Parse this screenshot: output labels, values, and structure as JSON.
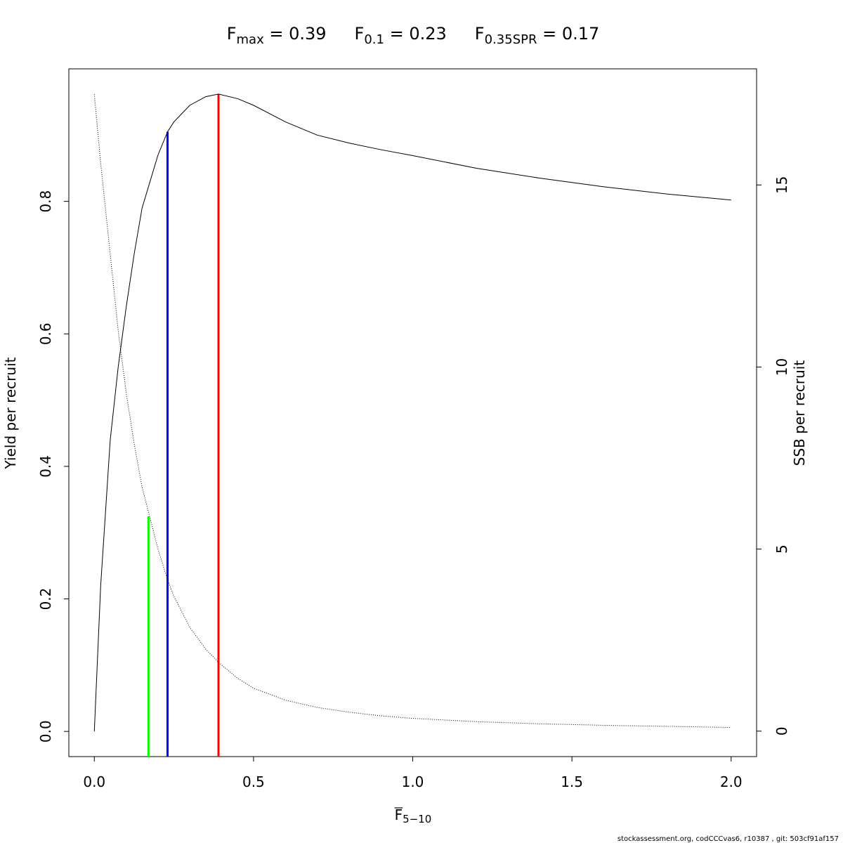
{
  "chart_data": {
    "type": "line",
    "title_parts": [
      {
        "text": "F",
        "sub": "max",
        "tail": " = 0.39"
      },
      {
        "text": "F",
        "sub": "0.1",
        "tail": " = 0.23"
      },
      {
        "text": "F",
        "sub": "0.35SPR",
        "tail": " = 0.17"
      }
    ],
    "x_label": {
      "text": "F",
      "sub": "5−10"
    },
    "y_label": "Yield per recruit",
    "y2_label": "SSB per recruit",
    "footer": "stockassessment.org, codCCCvas6, r10387 , git: 503cf91af157",
    "xlim": [
      -0.08,
      2.08
    ],
    "xticks": [
      {
        "value": 0,
        "label": "0.0"
      },
      0.5,
      {
        "value": 1,
        "label": "1.0"
      },
      1.5,
      {
        "value": 2,
        "label": "2.0"
      }
    ],
    "ylim": [
      -0.038,
      1.0
    ],
    "yticks": [
      {
        "value": 0,
        "label": "0.0"
      },
      0.2,
      0.4,
      0.6,
      0.8
    ],
    "y2lim": [
      -0.7,
      18.19
    ],
    "y2ticks": [
      0,
      5,
      10,
      15
    ],
    "x": [
      0,
      0.02,
      0.05,
      0.075,
      0.1,
      0.125,
      0.15,
      0.2,
      0.23,
      0.25,
      0.3,
      0.35,
      0.39,
      0.45,
      0.5,
      0.6,
      0.7,
      0.8,
      0.9,
      1.0,
      1.2,
      1.4,
      1.6,
      1.8,
      2.0
    ],
    "series": [
      {
        "name": "Yield per recruit",
        "color": "#000000",
        "dash": "solid",
        "values": [
          0,
          0.22,
          0.44,
          0.55,
          0.64,
          0.72,
          0.79,
          0.87,
          0.905,
          0.92,
          0.945,
          0.958,
          0.962,
          0.955,
          0.945,
          0.92,
          0.9,
          0.888,
          0.878,
          0.869,
          0.85,
          0.835,
          0.822,
          0.811,
          0.802
        ]
      },
      {
        "name": "SSB per recruit",
        "color": "#000000",
        "dash": "dotted",
        "axis": "y2",
        "values": [
          17.49,
          15.6,
          13.1,
          11.0,
          9.3,
          7.9,
          6.7,
          5.0,
          4.16,
          3.7,
          2.85,
          2.25,
          1.89,
          1.45,
          1.18,
          0.85,
          0.65,
          0.52,
          0.42,
          0.35,
          0.26,
          0.2,
          0.16,
          0.13,
          0.1
        ]
      }
    ],
    "reference_lines": [
      {
        "x": 0.39,
        "top": 0.962,
        "color": "#ff0000"
      },
      {
        "x": 0.23,
        "top": 0.905,
        "color": "#0000ff"
      },
      {
        "x": 0.17,
        "top": 5.9,
        "axis": "y2",
        "color": "#00ff00"
      }
    ]
  }
}
